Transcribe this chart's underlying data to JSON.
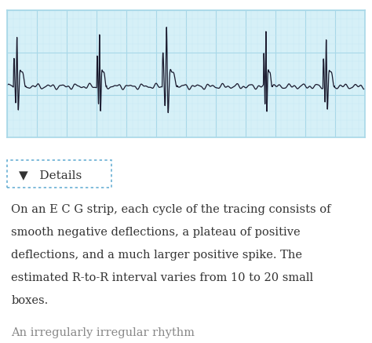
{
  "bg_color": "#ffffff",
  "ecg_bg": "#d6f0f7",
  "ecg_grid_major": "#a8d8e8",
  "ecg_grid_minor": "#c5e8f5",
  "ecg_line_color": "#1a1a2e",
  "details_box_border": "#6ab0d4",
  "details_text": "▼   Details",
  "details_text_color": "#333333",
  "body_text_color": "#333333",
  "body_text_line1": "On an E C G strip, each cycle of the tracing consists of",
  "body_text_line2": "smooth negative deflections, a plateau of positive",
  "body_text_line3": "deflections, and a much larger positive spike. The",
  "body_text_line4": "estimated R-to-R interval varies from 10 to 20 small",
  "body_text_line5": "boxes.",
  "footer_text": "An irregularly irregular rhythm",
  "footer_text_color": "#888888",
  "font_size_body": 10.5,
  "font_size_details": 11,
  "font_size_footer": 10.5
}
